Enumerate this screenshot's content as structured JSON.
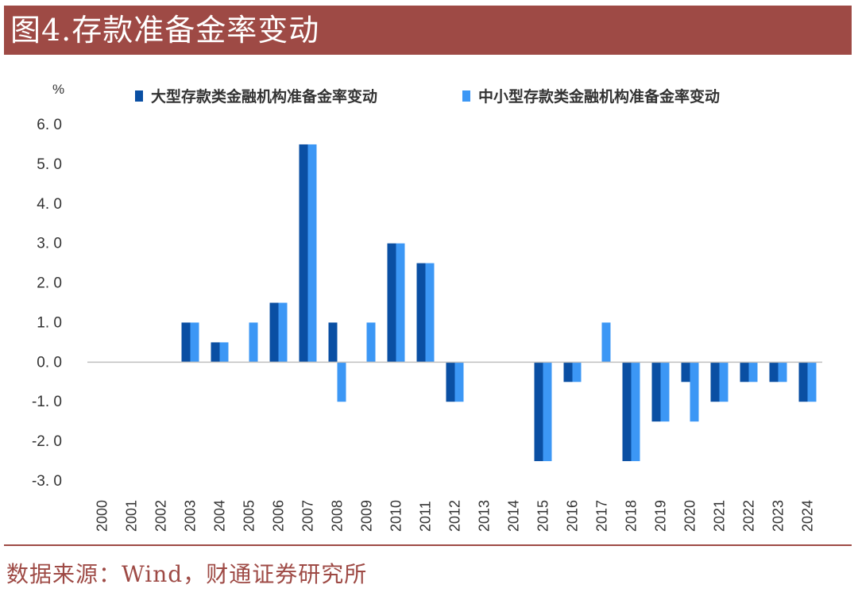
{
  "header": {
    "title": "图4.存款准备金率变动"
  },
  "footer": {
    "source": "数据来源：Wind，财通证券研究所"
  },
  "colors": {
    "series0": "#0a4fa3",
    "series1": "#3c97f5",
    "header_bg": "#9e4a45",
    "axis": "#bfbfbf"
  },
  "chart_data": {
    "type": "bar",
    "y_unit": "%",
    "categories": [
      "2000",
      "2001",
      "2002",
      "2003",
      "2004",
      "2005",
      "2006",
      "2007",
      "2008",
      "2009",
      "2010",
      "2011",
      "2012",
      "2013",
      "2014",
      "2015",
      "2016",
      "2017",
      "2018",
      "2019",
      "2020",
      "2021",
      "2022",
      "2023",
      "2024"
    ],
    "series": [
      {
        "name": "大型存款类金融机构准备金率变动",
        "values": [
          0,
          0,
          0,
          1.0,
          0.5,
          0,
          1.5,
          5.5,
          1.0,
          0,
          3.0,
          2.5,
          -1.0,
          0,
          0,
          -2.5,
          -0.5,
          0,
          -2.5,
          -1.5,
          -0.5,
          -1.0,
          -0.5,
          -0.5,
          -1.0
        ]
      },
      {
        "name": "中小型存款类金融机构准备金率变动",
        "values": [
          0,
          0,
          0,
          1.0,
          0.5,
          1.0,
          1.5,
          5.5,
          -1.0,
          1.0,
          3.0,
          2.5,
          -1.0,
          0,
          0,
          -2.5,
          -0.5,
          1.0,
          -2.5,
          -1.5,
          -1.5,
          -1.0,
          -0.5,
          -0.5,
          -1.0
        ]
      }
    ],
    "ylim": [
      -3.0,
      6.0
    ],
    "yticks": [
      "6. 0",
      "5. 0",
      "4. 0",
      "3. 0",
      "2. 0",
      "1. 0",
      "0. 0",
      "-1. 0",
      "-2. 0",
      "-3. 0"
    ],
    "legend_position": "top",
    "grid": false
  }
}
